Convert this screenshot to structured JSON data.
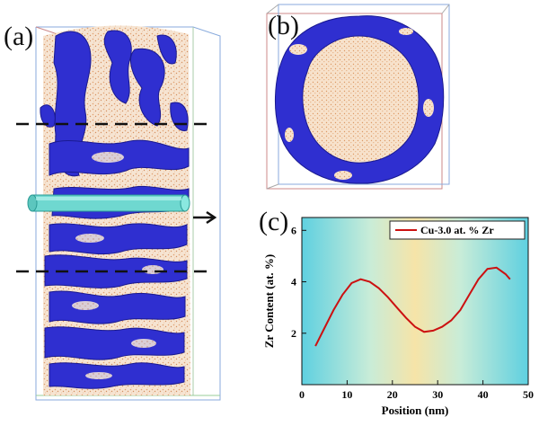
{
  "panels": {
    "a": {
      "label": "(a)"
    },
    "b": {
      "label": "(b)"
    },
    "c": {
      "label": "(c)"
    }
  },
  "chart_data": {
    "type": "line",
    "xlabel": "Position (nm)",
    "ylabel": "Zr Content (at. %)",
    "xlim": [
      0,
      50
    ],
    "ylim": [
      0,
      6.5
    ],
    "xticks": [
      0,
      10,
      20,
      30,
      40,
      50
    ],
    "yticks": [
      2,
      4,
      6
    ],
    "grid": false,
    "legend_position": "top-right",
    "series": [
      {
        "name": "Cu-3.0 at. % Zr",
        "color": "#cc1111",
        "x": [
          3,
          5,
          7,
          9,
          11,
          13,
          15,
          17,
          19,
          21,
          23,
          25,
          27,
          29,
          31,
          33,
          35,
          37,
          39,
          41,
          43,
          45,
          46
        ],
        "y": [
          1.5,
          2.2,
          2.9,
          3.5,
          3.95,
          4.1,
          4.0,
          3.75,
          3.4,
          3.0,
          2.6,
          2.25,
          2.05,
          2.1,
          2.25,
          2.5,
          2.9,
          3.5,
          4.1,
          4.5,
          4.55,
          4.3,
          4.1
        ]
      }
    ]
  }
}
